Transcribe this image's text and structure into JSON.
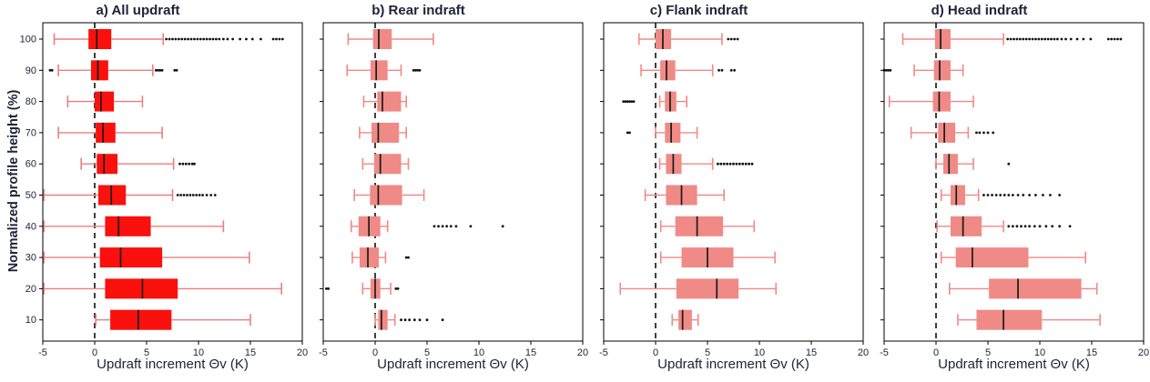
{
  "figure": {
    "background": "#ffffff"
  },
  "chart_data": [
    {
      "type": "box",
      "title": "a) All updraft",
      "xlabel": "Updraft increment Θv (K)",
      "ylabel": "Normalized profile height (%)",
      "xlim": [
        -5,
        20
      ],
      "xticks": [
        -5,
        0,
        5,
        10,
        15,
        20
      ],
      "yticks": [
        100,
        90,
        80,
        70,
        60,
        50,
        40,
        30,
        20,
        10
      ],
      "show_ytick_labels": true,
      "zero_line": true,
      "orientation": "horizontal",
      "colors": {
        "box": "#fa100c",
        "whisker": "#ec7e7e",
        "median": "#1b1b1b",
        "outlier": "#111111"
      },
      "boxes": [
        {
          "y": 100,
          "whislo": -3.9,
          "q1": -0.6,
          "med": 0.2,
          "q3": 1.6,
          "whishi": 6.6,
          "outliers": [
            6.9,
            7.2,
            7.5,
            7.8,
            8.1,
            8.4,
            8.7,
            9.0,
            9.3,
            9.6,
            9.9,
            10.2,
            10.5,
            10.8,
            11.1,
            11.4,
            11.7,
            12.0,
            12.4,
            12.8,
            13.3,
            14.0,
            14.6,
            15.2,
            16.0,
            17.2,
            17.5,
            17.8,
            18.1
          ]
        },
        {
          "y": 90,
          "whislo": -3.5,
          "q1": -0.35,
          "med": 0.3,
          "q3": 1.3,
          "whishi": 5.6,
          "outliers": [
            -4.3,
            -4.1,
            5.9,
            6.1,
            6.3,
            6.5,
            7.7,
            7.9
          ]
        },
        {
          "y": 80,
          "whislo": -2.6,
          "q1": 0.0,
          "med": 0.6,
          "q3": 1.85,
          "whishi": 4.6,
          "outliers": []
        },
        {
          "y": 70,
          "whislo": -3.5,
          "q1": 0.1,
          "med": 0.8,
          "q3": 2.0,
          "whishi": 6.5,
          "outliers": []
        },
        {
          "y": 60,
          "whislo": -1.3,
          "q1": 0.2,
          "med": 0.9,
          "q3": 2.2,
          "whishi": 7.6,
          "outliers": [
            8.2,
            8.5,
            8.8,
            9.1,
            9.4,
            9.6
          ]
        },
        {
          "y": 50,
          "whislo": -4.9,
          "q1": 0.35,
          "med": 1.6,
          "q3": 3.0,
          "whishi": 7.5,
          "outliers": [
            8.0,
            8.3,
            8.6,
            8.9,
            9.2,
            9.5,
            9.8,
            10.1,
            10.4,
            10.8,
            11.2,
            11.6
          ]
        },
        {
          "y": 40,
          "whislo": -4.9,
          "q1": 1.0,
          "med": 2.3,
          "q3": 5.4,
          "whishi": 12.4,
          "outliers": []
        },
        {
          "y": 30,
          "whislo": -4.9,
          "q1": 0.5,
          "med": 2.5,
          "q3": 6.5,
          "whishi": 14.9,
          "outliers": []
        },
        {
          "y": 20,
          "whislo": -4.9,
          "q1": 1.0,
          "med": 4.6,
          "q3": 8.0,
          "whishi": 18.0,
          "outliers": []
        },
        {
          "y": 10,
          "whislo": 0.1,
          "q1": 1.5,
          "med": 4.2,
          "q3": 7.4,
          "whishi": 15.0,
          "outliers": []
        }
      ]
    },
    {
      "type": "box",
      "title": "b) Rear indraft",
      "xlabel": "Updraft increment Θv (K)",
      "ylabel": "",
      "xlim": [
        -5,
        20
      ],
      "xticks": [
        -5,
        0,
        5,
        10,
        15,
        20
      ],
      "yticks": [
        100,
        90,
        80,
        70,
        60,
        50,
        40,
        30,
        20,
        10
      ],
      "show_ytick_labels": false,
      "zero_line": true,
      "orientation": "horizontal",
      "colors": {
        "box": "#f08a86",
        "whisker": "#f08a86",
        "median": "#1b1b1b",
        "outlier": "#111111"
      },
      "boxes": [
        {
          "y": 100,
          "whislo": -2.6,
          "q1": -0.2,
          "med": 0.35,
          "q3": 1.6,
          "whishi": 5.6,
          "outliers": []
        },
        {
          "y": 90,
          "whislo": -2.7,
          "q1": -0.45,
          "med": 0.1,
          "q3": 1.2,
          "whishi": 2.5,
          "outliers": [
            3.7,
            3.9,
            4.1,
            4.3
          ]
        },
        {
          "y": 80,
          "whislo": -1.1,
          "q1": 0.2,
          "med": 0.7,
          "q3": 2.5,
          "whishi": 3.0,
          "outliers": []
        },
        {
          "y": 70,
          "whislo": -1.5,
          "q1": -0.35,
          "med": 0.3,
          "q3": 2.3,
          "whishi": 3.0,
          "outliers": []
        },
        {
          "y": 60,
          "whislo": -1.2,
          "q1": -0.1,
          "med": 0.5,
          "q3": 2.5,
          "whishi": 3.2,
          "outliers": []
        },
        {
          "y": 50,
          "whislo": -2.0,
          "q1": -0.5,
          "med": 0.3,
          "q3": 2.6,
          "whishi": 4.7,
          "outliers": []
        },
        {
          "y": 40,
          "whislo": -2.3,
          "q1": -1.6,
          "med": -0.6,
          "q3": 0.5,
          "whishi": 1.2,
          "outliers": [
            5.7,
            6.1,
            6.5,
            6.9,
            7.3,
            7.8,
            9.2,
            12.3
          ]
        },
        {
          "y": 30,
          "whislo": -2.2,
          "q1": -1.5,
          "med": -0.7,
          "q3": 0.35,
          "whishi": 1.0,
          "outliers": [
            3.0,
            3.2
          ]
        },
        {
          "y": 20,
          "whislo": -1.2,
          "q1": -0.45,
          "med": 0.0,
          "q3": 0.5,
          "whishi": 1.5,
          "outliers": [
            -4.7,
            -4.5,
            2.0,
            2.2
          ]
        },
        {
          "y": 10,
          "whislo": 0.0,
          "q1": 0.3,
          "med": 0.6,
          "q3": 1.2,
          "whishi": 1.9,
          "outliers": [
            2.5,
            2.9,
            3.3,
            3.8,
            4.3,
            5.0,
            6.5
          ]
        }
      ]
    },
    {
      "type": "box",
      "title": "c) Flank indraft",
      "xlabel": "Updraft increment Θv (K)",
      "ylabel": "",
      "xlim": [
        -5,
        20
      ],
      "xticks": [
        -5,
        0,
        5,
        10,
        15,
        20
      ],
      "yticks": [
        100,
        90,
        80,
        70,
        60,
        50,
        40,
        30,
        20,
        10
      ],
      "show_ytick_labels": false,
      "zero_line": true,
      "orientation": "horizontal",
      "colors": {
        "box": "#f08a86",
        "whisker": "#f08a86",
        "median": "#1b1b1b",
        "outlier": "#111111"
      },
      "boxes": [
        {
          "y": 100,
          "whislo": -1.6,
          "q1": 0.0,
          "med": 0.7,
          "q3": 1.5,
          "whishi": 6.4,
          "outliers": [
            7.0,
            7.3,
            7.6,
            7.9
          ]
        },
        {
          "y": 90,
          "whislo": -1.4,
          "q1": 0.45,
          "med": 1.05,
          "q3": 1.9,
          "whishi": 5.5,
          "outliers": [
            6.1,
            6.4,
            7.3,
            7.6
          ]
        },
        {
          "y": 80,
          "whislo": 0.4,
          "q1": 0.9,
          "med": 1.4,
          "q3": 2.0,
          "whishi": 3.0,
          "outliers": [
            -3.1,
            -2.9,
            -2.7,
            -2.5,
            -2.3,
            -2.1
          ]
        },
        {
          "y": 70,
          "whislo": 0.0,
          "q1": 0.9,
          "med": 1.5,
          "q3": 2.4,
          "whishi": 4.0,
          "outliers": [
            -2.7,
            -2.5
          ]
        },
        {
          "y": 60,
          "whislo": 0.4,
          "q1": 1.0,
          "med": 1.7,
          "q3": 2.5,
          "whishi": 5.5,
          "outliers": [
            6.0,
            6.3,
            6.6,
            6.9,
            7.2,
            7.5,
            7.8,
            8.1,
            8.4,
            8.7,
            9.0,
            9.3
          ]
        },
        {
          "y": 50,
          "whislo": -1.0,
          "q1": 1.0,
          "med": 2.5,
          "q3": 4.0,
          "whishi": 6.6,
          "outliers": []
        },
        {
          "y": 40,
          "whislo": 0.5,
          "q1": 1.9,
          "med": 4.0,
          "q3": 6.5,
          "whishi": 9.5,
          "outliers": []
        },
        {
          "y": 30,
          "whislo": 0.5,
          "q1": 2.5,
          "med": 5.0,
          "q3": 7.5,
          "whishi": 11.5,
          "outliers": []
        },
        {
          "y": 20,
          "whislo": -3.4,
          "q1": 2.0,
          "med": 5.9,
          "q3": 8.0,
          "whishi": 11.6,
          "outliers": []
        },
        {
          "y": 10,
          "whislo": 1.6,
          "q1": 2.2,
          "med": 2.6,
          "q3": 3.5,
          "whishi": 4.1,
          "outliers": []
        }
      ]
    },
    {
      "type": "box",
      "title": "d) Head indraft",
      "xlabel": "Updraft increment Θv (K)",
      "ylabel": "",
      "xlim": [
        -5,
        20
      ],
      "xticks": [
        -5,
        0,
        5,
        10,
        15,
        20
      ],
      "yticks": [
        100,
        90,
        80,
        70,
        60,
        50,
        40,
        30,
        20,
        10
      ],
      "show_ytick_labels": false,
      "zero_line": true,
      "orientation": "horizontal",
      "colors": {
        "box": "#f08a86",
        "whisker": "#f08a86",
        "median": "#1b1b1b",
        "outlier": "#111111"
      },
      "boxes": [
        {
          "y": 100,
          "whislo": -3.2,
          "q1": -0.1,
          "med": 0.45,
          "q3": 1.4,
          "whishi": 6.5,
          "outliers": [
            6.9,
            7.2,
            7.5,
            7.8,
            8.1,
            8.4,
            8.7,
            9.0,
            9.3,
            9.6,
            9.9,
            10.2,
            10.5,
            10.8,
            11.1,
            11.4,
            11.7,
            12.1,
            12.5,
            13.0,
            13.6,
            14.2,
            14.9,
            16.6,
            16.9,
            17.2,
            17.5,
            17.8
          ]
        },
        {
          "y": 90,
          "whislo": -2.1,
          "q1": -0.2,
          "med": 0.35,
          "q3": 1.4,
          "whishi": 2.6,
          "outliers": [
            -5.0,
            -4.8,
            -4.6,
            -4.4
          ]
        },
        {
          "y": 80,
          "whislo": -4.5,
          "q1": -0.3,
          "med": 0.3,
          "q3": 1.4,
          "whishi": 3.6,
          "outliers": []
        },
        {
          "y": 70,
          "whislo": -2.4,
          "q1": 0.2,
          "med": 0.8,
          "q3": 1.85,
          "whishi": 3.1,
          "outliers": [
            3.9,
            4.2,
            4.6,
            5.0,
            5.5
          ]
        },
        {
          "y": 60,
          "whislo": 0.0,
          "q1": 0.7,
          "med": 1.25,
          "q3": 2.1,
          "whishi": 3.6,
          "outliers": [
            7.0
          ]
        },
        {
          "y": 50,
          "whislo": 0.5,
          "q1": 1.4,
          "med": 1.95,
          "q3": 2.8,
          "whishi": 4.1,
          "outliers": [
            4.6,
            5.0,
            5.4,
            5.8,
            6.2,
            6.6,
            7.0,
            7.4,
            7.9,
            8.4,
            9.0,
            9.6,
            10.3,
            11.0,
            11.9
          ]
        },
        {
          "y": 40,
          "whislo": 0.1,
          "q1": 1.4,
          "med": 2.6,
          "q3": 4.4,
          "whishi": 6.5,
          "outliers": [
            7.0,
            7.4,
            7.8,
            8.2,
            8.6,
            9.0,
            9.5,
            10.0,
            10.6,
            11.2,
            11.9,
            12.9
          ]
        },
        {
          "y": 30,
          "whislo": 0.5,
          "q1": 1.9,
          "med": 3.5,
          "q3": 8.9,
          "whishi": 14.4,
          "outliers": []
        },
        {
          "y": 20,
          "whislo": 1.3,
          "q1": 5.1,
          "med": 7.9,
          "q3": 14.0,
          "whishi": 15.5,
          "outliers": []
        },
        {
          "y": 10,
          "whislo": 2.1,
          "q1": 3.9,
          "med": 6.5,
          "q3": 10.2,
          "whishi": 15.8,
          "outliers": []
        }
      ]
    }
  ]
}
